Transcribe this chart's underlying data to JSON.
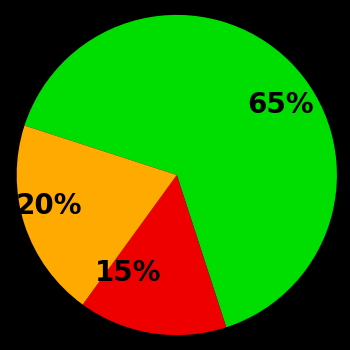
{
  "slices": [
    65,
    15,
    20
  ],
  "colors": [
    "#00dd00",
    "#ee0000",
    "#ffaa00"
  ],
  "labels": [
    "65%",
    "15%",
    "20%"
  ],
  "background_color": "#000000",
  "text_color": "#000000",
  "font_size": 20,
  "font_weight": "bold",
  "startangle": 162,
  "label_distance": 0.62
}
